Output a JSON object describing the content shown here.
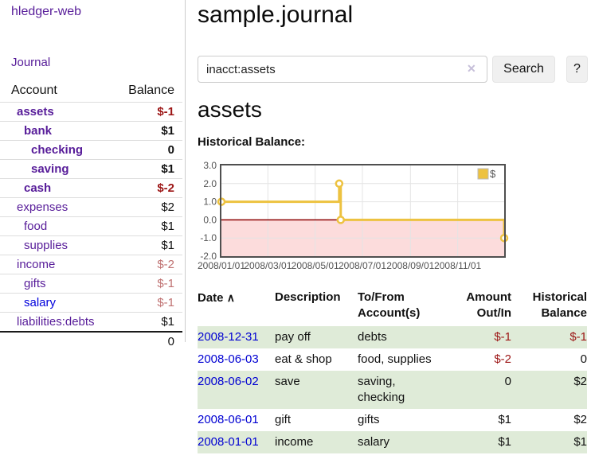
{
  "colors": {
    "brand_purple": "#571c99",
    "link_blue": "#0000dd",
    "negative_red": "#9c1515",
    "negative_rose": "#bf7171",
    "row_stripe_green": "#dfebd8",
    "chart_series_yellow": "#edc240"
  },
  "sidebar": {
    "brand": "hledger-web",
    "journal_link": "Journal",
    "accounts_table": {
      "headers": {
        "account": "Account",
        "balance": "Balance"
      },
      "rows": [
        {
          "account": "assets",
          "balance": "$-1"
        },
        {
          "account": "bank",
          "balance": "$1"
        },
        {
          "account": "checking",
          "balance": "0"
        },
        {
          "account": "saving",
          "balance": "$1"
        },
        {
          "account": "cash",
          "balance": "$-2"
        },
        {
          "account": "expenses",
          "balance": "$2"
        },
        {
          "account": "food",
          "balance": "$1"
        },
        {
          "account": "supplies",
          "balance": "$1"
        },
        {
          "account": "income",
          "balance": "$-2"
        },
        {
          "account": "gifts",
          "balance": "$-1"
        },
        {
          "account": "salary",
          "balance": "$-1"
        },
        {
          "account": "liabilities:debts",
          "balance": "$1"
        }
      ],
      "total": "0"
    }
  },
  "main": {
    "title": "sample.journal",
    "search": {
      "value": "inacct:assets",
      "clear_icon": "✕",
      "button": "Search",
      "help_button": "?"
    },
    "section_title": "assets",
    "chart_label": "Historical Balance:"
  },
  "chart_data": {
    "type": "line",
    "step": true,
    "title": "Historical Balance:",
    "series": [
      {
        "name": "$",
        "color": "#edc240",
        "points": [
          [
            "2008-01-01",
            1
          ],
          [
            "2008-06-01",
            2
          ],
          [
            "2008-06-03",
            0
          ],
          [
            "2008-12-31",
            -1
          ]
        ]
      }
    ],
    "x_range": [
      "2008-01-01",
      "2008-12-31"
    ],
    "x_ticks": [
      "2008/01/01",
      "2008/03/01",
      "2008/05/01",
      "2008/07/01",
      "2008/09/01",
      "2008/11/01"
    ],
    "y_ticks": [
      "3.0",
      "2.0",
      "1.0",
      "0.0",
      "-1.0",
      "-2.0"
    ],
    "ylim": [
      -2,
      3
    ],
    "grid": true,
    "legend_position": "top-right",
    "negative_region_color": "#fcdcdc",
    "zero_line_color": "#8b0000",
    "border_color": "#4f4f4f",
    "grid_color": "#e4e4e4",
    "tick_color": "#545454"
  },
  "register": {
    "sort_icon": "∧",
    "headers": {
      "date": "Date",
      "description": "Description",
      "accounts": "To/From Account(s)",
      "amount": "Amount Out/In",
      "balance": "Historical Balance"
    },
    "rows": [
      {
        "date": "2008-12-31",
        "description": "pay off",
        "accounts": "debts",
        "amount": "$-1",
        "balance": "$-1"
      },
      {
        "date": "2008-06-03",
        "description": "eat & shop",
        "accounts": "food, supplies",
        "amount": "$-2",
        "balance": "0"
      },
      {
        "date": "2008-06-02",
        "description": "save",
        "accounts": "saving, checking",
        "amount": "0",
        "balance": "$2"
      },
      {
        "date": "2008-06-01",
        "description": "gift",
        "accounts": "gifts",
        "amount": "$1",
        "balance": "$2"
      },
      {
        "date": "2008-01-01",
        "description": "income",
        "accounts": "salary",
        "amount": "$1",
        "balance": "$1"
      }
    ]
  }
}
